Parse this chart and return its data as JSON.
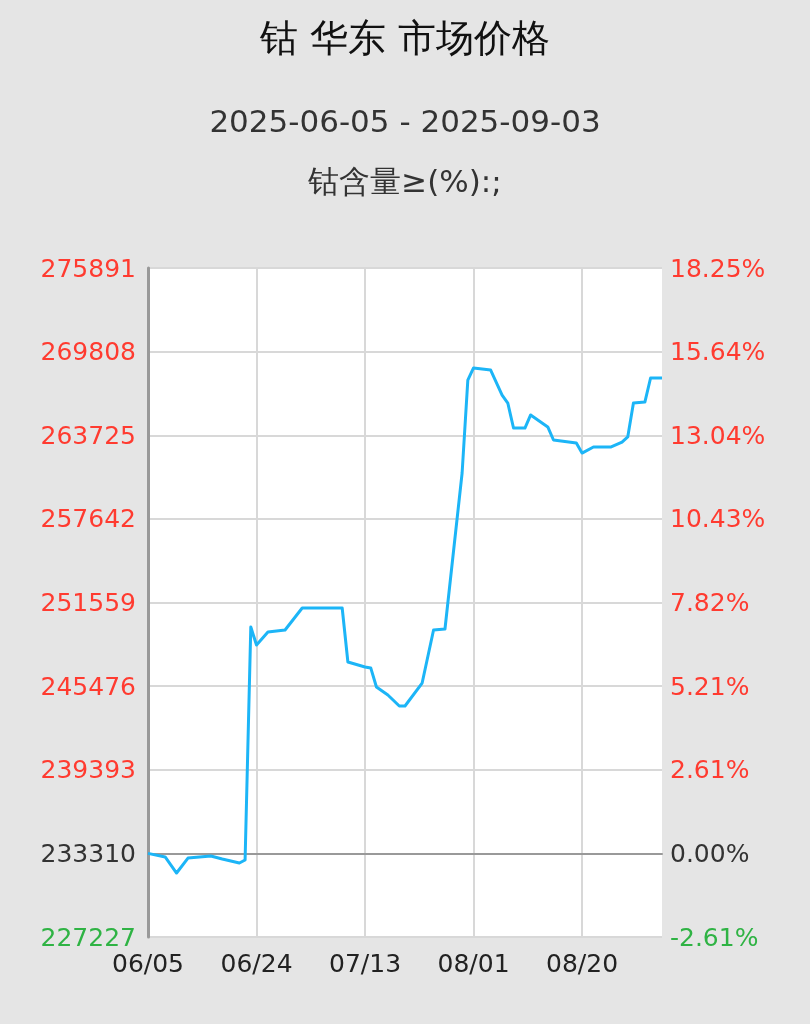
{
  "chart_data": {
    "type": "line",
    "title": "钴 华东 市场价格",
    "subtitle": "2025-06-05 - 2025-09-03",
    "annotations": [
      "钴含量≥(%):;"
    ],
    "x": [
      "2025-06-05",
      "2025-06-08",
      "2025-06-10",
      "2025-06-12",
      "2025-06-16",
      "2025-06-18",
      "2025-06-21",
      "2025-06-22",
      "2025-06-23",
      "2025-06-24",
      "2025-06-26",
      "2025-06-29",
      "2025-07-02",
      "2025-07-09",
      "2025-07-10",
      "2025-07-13",
      "2025-07-14",
      "2025-07-15",
      "2025-07-17",
      "2025-07-19",
      "2025-07-20",
      "2025-07-23",
      "2025-07-25",
      "2025-07-27",
      "2025-07-30",
      "2025-07-31",
      "2025-08-01",
      "2025-08-04",
      "2025-08-06",
      "2025-08-07",
      "2025-08-08",
      "2025-08-10",
      "2025-08-11",
      "2025-08-14",
      "2025-08-15",
      "2025-08-19",
      "2025-08-20",
      "2025-08-22",
      "2025-08-25",
      "2025-08-27",
      "2025-08-28",
      "2025-08-29",
      "2025-08-31",
      "2025-09-01",
      "2025-09-03"
    ],
    "series": [
      {
        "color": "#1cb5f7",
        "values": [
          233310,
          233050,
          231880,
          232970,
          233120,
          232900,
          232610,
          232830,
          249780,
          248470,
          249410,
          249560,
          251160,
          251160,
          247230,
          246870,
          246800,
          245410,
          244830,
          244030,
          244030,
          245700,
          249560,
          249630,
          260980,
          267740,
          268620,
          268470,
          266650,
          266070,
          264250,
          264250,
          265200,
          264330,
          263380,
          263160,
          262430,
          262870,
          262870,
          263230,
          263600,
          266070,
          266140,
          267890,
          267890
        ]
      }
    ],
    "xlim": [
      "2025-06-05",
      "2025-09-03"
    ],
    "xticks": [
      {
        "value": "2025-06-05",
        "label": "06/05"
      },
      {
        "value": "2025-06-24",
        "label": "06/24"
      },
      {
        "value": "2025-07-13",
        "label": "07/13"
      },
      {
        "value": "2025-08-01",
        "label": "08/01"
      },
      {
        "value": "2025-08-20",
        "label": "08/20"
      }
    ],
    "ylim": [
      227227,
      275891
    ],
    "yticks": [
      227227,
      233310,
      239393,
      245476,
      251559,
      257642,
      263725,
      269808,
      275891
    ],
    "y2lim": [
      -2.61,
      18.25
    ],
    "y2ticks": [
      {
        "value": -2.61,
        "label": "-2.61%"
      },
      {
        "value": 0,
        "label": "0.00%"
      },
      {
        "value": 2.61,
        "label": "2.61%"
      },
      {
        "value": 5.21,
        "label": "5.21%"
      },
      {
        "value": 7.82,
        "label": "7.82%"
      },
      {
        "value": 10.43,
        "label": "10.43%"
      },
      {
        "value": 13.04,
        "label": "13.04%"
      },
      {
        "value": 15.64,
        "label": "15.64%"
      },
      {
        "value": 18.25,
        "label": "18.25%"
      }
    ],
    "grid": true,
    "marker": "none",
    "line_style": "solid"
  }
}
